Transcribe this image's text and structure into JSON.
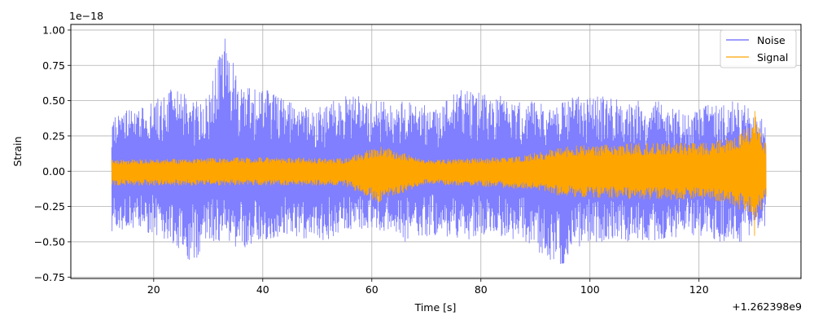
{
  "chart_data": {
    "type": "line",
    "xlabel": "Time [s]",
    "ylabel": "Strain",
    "x_offset_label": "+1.262398e9",
    "y_scale_label": "1e−18",
    "xlim": [
      4.8,
      138.7
    ],
    "ylim": [
      -0.76,
      1.04
    ],
    "grid": true,
    "legend_position": "top-right",
    "x_ticks": [
      {
        "value": 20,
        "label": "20"
      },
      {
        "value": 40,
        "label": "40"
      },
      {
        "value": 60,
        "label": "60"
      },
      {
        "value": 80,
        "label": "80"
      },
      {
        "value": 100,
        "label": "100"
      },
      {
        "value": 120,
        "label": "120"
      }
    ],
    "y_ticks": [
      {
        "value": -0.75,
        "label": "−0.75"
      },
      {
        "value": -0.5,
        "label": "−0.50"
      },
      {
        "value": -0.25,
        "label": "−0.25"
      },
      {
        "value": 0.0,
        "label": "0.00"
      },
      {
        "value": 0.25,
        "label": "0.25"
      },
      {
        "value": 0.5,
        "label": "0.50"
      },
      {
        "value": 0.75,
        "label": "0.75"
      },
      {
        "value": 1.0,
        "label": "1.00"
      }
    ],
    "series": [
      {
        "name": "Noise",
        "color": "#7f7fff",
        "x_range": [
          12.3,
          132.3
        ],
        "envelope": [
          {
            "t": 12.3,
            "upper": 0.38,
            "lower": -0.45
          },
          {
            "t": 16.0,
            "upper": 0.45,
            "lower": -0.4
          },
          {
            "t": 20.0,
            "upper": 0.5,
            "lower": -0.45
          },
          {
            "t": 24.0,
            "upper": 0.6,
            "lower": -0.55
          },
          {
            "t": 27.0,
            "upper": 0.5,
            "lower": -0.66
          },
          {
            "t": 30.0,
            "upper": 0.55,
            "lower": -0.5
          },
          {
            "t": 32.9,
            "upper": 0.96,
            "lower": -0.5
          },
          {
            "t": 36.0,
            "upper": 0.6,
            "lower": -0.55
          },
          {
            "t": 40.0,
            "upper": 0.6,
            "lower": -0.5
          },
          {
            "t": 44.0,
            "upper": 0.5,
            "lower": -0.45
          },
          {
            "t": 50.0,
            "upper": 0.45,
            "lower": -0.5
          },
          {
            "t": 56.0,
            "upper": 0.55,
            "lower": -0.45
          },
          {
            "t": 60.0,
            "upper": 0.5,
            "lower": -0.4
          },
          {
            "t": 66.0,
            "upper": 0.5,
            "lower": -0.5
          },
          {
            "t": 72.0,
            "upper": 0.45,
            "lower": -0.45
          },
          {
            "t": 76.0,
            "upper": 0.6,
            "lower": -0.5
          },
          {
            "t": 82.0,
            "upper": 0.55,
            "lower": -0.45
          },
          {
            "t": 88.0,
            "upper": 0.5,
            "lower": -0.5
          },
          {
            "t": 94.5,
            "upper": 0.5,
            "lower": -0.68
          },
          {
            "t": 100.0,
            "upper": 0.55,
            "lower": -0.5
          },
          {
            "t": 106.0,
            "upper": 0.5,
            "lower": -0.5
          },
          {
            "t": 112.0,
            "upper": 0.5,
            "lower": -0.5
          },
          {
            "t": 118.0,
            "upper": 0.45,
            "lower": -0.45
          },
          {
            "t": 124.0,
            "upper": 0.5,
            "lower": -0.5
          },
          {
            "t": 128.0,
            "upper": 0.5,
            "lower": -0.5
          },
          {
            "t": 132.3,
            "upper": 0.35,
            "lower": -0.4
          }
        ]
      },
      {
        "name": "Signal",
        "color": "#ffa500",
        "x_range": [
          12.3,
          132.3
        ],
        "envelope": [
          {
            "t": 12.3,
            "upper": 0.08,
            "lower": -0.1
          },
          {
            "t": 40.0,
            "upper": 0.1,
            "lower": -0.1
          },
          {
            "t": 55.0,
            "upper": 0.09,
            "lower": -0.1
          },
          {
            "t": 61.6,
            "upper": 0.18,
            "lower": -0.23
          },
          {
            "t": 70.0,
            "upper": 0.08,
            "lower": -0.09
          },
          {
            "t": 86.0,
            "upper": 0.1,
            "lower": -0.12
          },
          {
            "t": 96.0,
            "upper": 0.18,
            "lower": -0.18
          },
          {
            "t": 110.0,
            "upper": 0.2,
            "lower": -0.2
          },
          {
            "t": 122.0,
            "upper": 0.2,
            "lower": -0.2
          },
          {
            "t": 126.0,
            "upper": 0.25,
            "lower": -0.25
          },
          {
            "t": 129.5,
            "upper": 0.32,
            "lower": -0.3
          },
          {
            "t": 130.2,
            "upper": 0.51,
            "lower": -0.47
          },
          {
            "t": 131.0,
            "upper": 0.3,
            "lower": -0.3
          },
          {
            "t": 132.3,
            "upper": 0.2,
            "lower": -0.2
          }
        ]
      }
    ]
  }
}
